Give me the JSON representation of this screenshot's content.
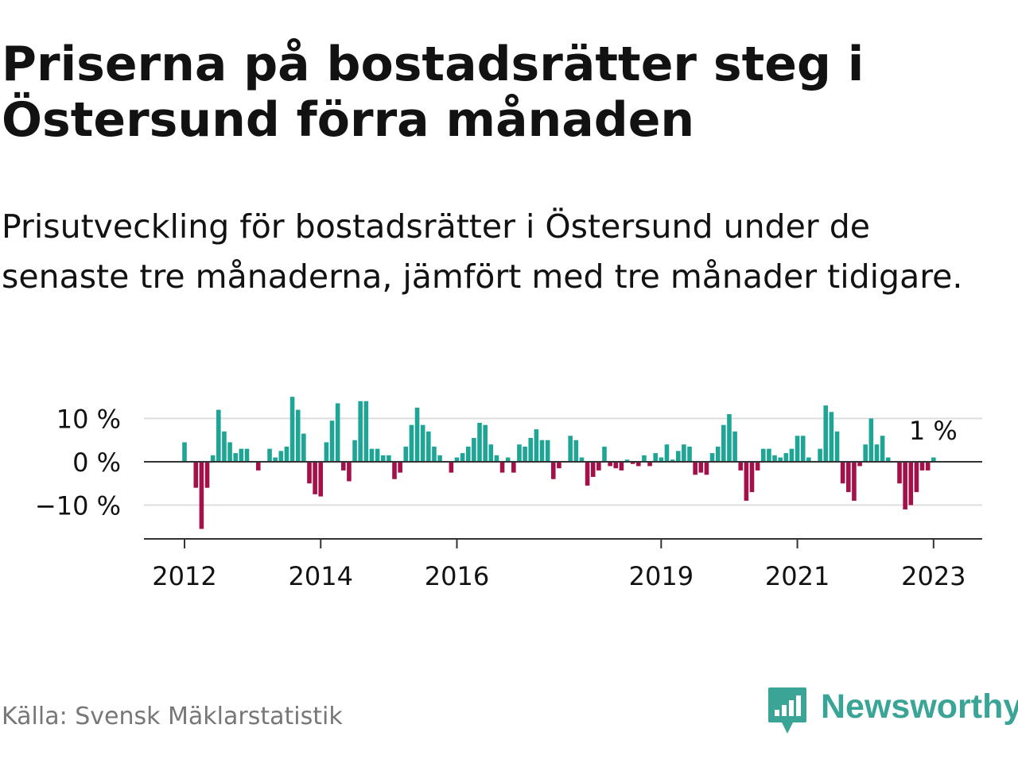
{
  "title": "Priserna på bostadsrätter steg i Östersund förra månaden",
  "subtitle": "Prisutveckling för bostadsrätter i Östersund under de senaste tre månaderna, jämfört med tre månader tidigare.",
  "source": "Källa: Svensk Mäklarstatistik",
  "logo_text": "Newsworthy",
  "colors": {
    "positive": "#1fa596",
    "negative": "#a3104a",
    "grid": "#dddddd",
    "axis": "#333333",
    "text": "#121212",
    "muted": "#777777",
    "brand": "#3aa596"
  },
  "chart_data": {
    "type": "bar",
    "unit": "%",
    "x_start": "2012-01",
    "ylim": [
      -17,
      15
    ],
    "y_ticks": [
      10,
      0,
      -10
    ],
    "y_tick_labels": [
      "10 %",
      "0 %",
      "−10 %"
    ],
    "x_tick_labels": [
      "2012",
      "2014",
      "2016",
      "2019",
      "2021",
      "2023"
    ],
    "grid": true,
    "last_value_label": "1 %",
    "values": [
      4.5,
      0,
      -6,
      -15.5,
      -6,
      1.5,
      12,
      7,
      4.5,
      2,
      3,
      3,
      0,
      -2,
      0,
      3,
      1,
      2.5,
      3.5,
      15,
      12,
      6.5,
      -5,
      -7.5,
      -8,
      4.5,
      9.5,
      13.5,
      -2,
      -4.5,
      5,
      14,
      14,
      3,
      3,
      1.5,
      1.5,
      -4,
      -2.5,
      3.5,
      8.5,
      12.5,
      8.5,
      7,
      3.5,
      1.5,
      0,
      -2.5,
      1,
      2,
      3.5,
      5.5,
      9,
      8.5,
      4,
      1.5,
      -2.5,
      1,
      -2.5,
      4,
      3.5,
      5.5,
      7.5,
      5,
      5,
      -4,
      -1.5,
      0,
      6,
      5,
      1,
      -5.5,
      -3.5,
      -2,
      3.5,
      -1,
      -1.5,
      -2,
      0.5,
      -0.5,
      -1,
      1.5,
      -1,
      2,
      1,
      4,
      0.5,
      2.5,
      4,
      3.5,
      -3,
      -2.5,
      -3,
      2,
      3.5,
      8.5,
      11,
      7,
      -2,
      -9,
      -7,
      -2,
      3,
      3,
      1.5,
      1,
      2,
      3,
      6,
      6,
      1,
      0,
      3,
      13,
      11.5,
      7,
      -5,
      -7,
      -9,
      -1,
      4,
      10,
      4,
      6,
      1,
      0,
      -5,
      -11,
      -10,
      -7,
      -2,
      -2,
      1
    ]
  }
}
